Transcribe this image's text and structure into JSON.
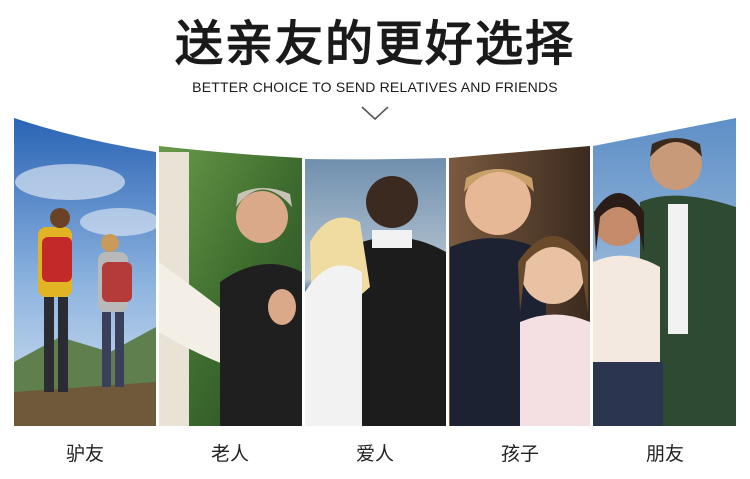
{
  "header": {
    "title": "送亲友的更好选择",
    "subtitle": "BETTER CHOICE TO SEND RELATIVES AND FRIENDS"
  },
  "icons": {
    "chevron": "chevron-down-icon"
  },
  "categories": [
    {
      "label": "驴友"
    },
    {
      "label": "老人"
    },
    {
      "label": "爱人"
    },
    {
      "label": "孩子"
    },
    {
      "label": "朋友"
    }
  ],
  "colors": {
    "text": "#1a1a1a",
    "sky": "#3f7fc9",
    "grass": "#4f8a3a",
    "sea": "#4a6f92"
  }
}
